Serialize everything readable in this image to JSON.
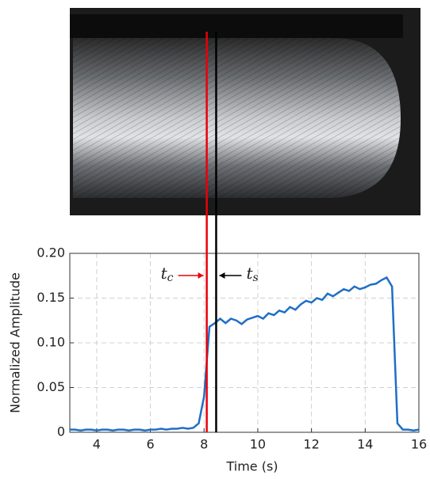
{
  "chart_data": {
    "type": "line",
    "x_label": "Time (s)",
    "y_label": "Normalized Amplitude",
    "xlim": [
      3,
      16
    ],
    "ylim": [
      0,
      0.2
    ],
    "xticks": [
      4,
      6,
      8,
      10,
      12,
      14,
      16
    ],
    "yticks": [
      0,
      {
        "value": 0.05,
        "label": "0.05"
      },
      {
        "value": 0.1,
        "label": "0.10"
      },
      {
        "value": 0.15,
        "label": "0.15"
      },
      {
        "value": 0.2,
        "label": "0.20"
      }
    ],
    "grid": true,
    "x": [
      3.0,
      3.2,
      3.4,
      3.6,
      3.8,
      4.0,
      4.2,
      4.4,
      4.6,
      4.8,
      5.0,
      5.2,
      5.4,
      5.6,
      5.8,
      6.0,
      6.2,
      6.4,
      6.6,
      6.8,
      7.0,
      7.2,
      7.4,
      7.6,
      7.8,
      8.0,
      8.2,
      8.4,
      8.6,
      8.8,
      9.0,
      9.2,
      9.4,
      9.6,
      9.8,
      10.0,
      10.2,
      10.4,
      10.6,
      10.8,
      11.0,
      11.2,
      11.4,
      11.6,
      11.8,
      12.0,
      12.2,
      12.4,
      12.6,
      12.8,
      13.0,
      13.2,
      13.4,
      13.6,
      13.8,
      14.0,
      14.2,
      14.4,
      14.6,
      14.8,
      15.0,
      15.2,
      15.4,
      15.6,
      15.8,
      16.0
    ],
    "series": [
      {
        "color": "#1f6fc5",
        "values": [
          0.003,
          0.003,
          0.002,
          0.003,
          0.003,
          0.002,
          0.003,
          0.003,
          0.002,
          0.003,
          0.003,
          0.002,
          0.003,
          0.003,
          0.002,
          0.003,
          0.003,
          0.004,
          0.003,
          0.004,
          0.004,
          0.005,
          0.004,
          0.005,
          0.01,
          0.04,
          0.118,
          0.122,
          0.127,
          0.122,
          0.127,
          0.125,
          0.121,
          0.126,
          0.128,
          0.13,
          0.127,
          0.133,
          0.131,
          0.136,
          0.134,
          0.14,
          0.137,
          0.143,
          0.147,
          0.145,
          0.15,
          0.148,
          0.155,
          0.152,
          0.156,
          0.16,
          0.158,
          0.163,
          0.16,
          0.162,
          0.165,
          0.166,
          0.17,
          0.173,
          0.163,
          0.01,
          0.003,
          0.003,
          0.002,
          0.003
        ]
      }
    ],
    "markers": [
      {
        "label": "t",
        "subscript": "c",
        "x": 8.1,
        "color": "#e8000b"
      },
      {
        "label": "t",
        "subscript": "s",
        "x": 8.45,
        "color": "#000000"
      }
    ]
  }
}
